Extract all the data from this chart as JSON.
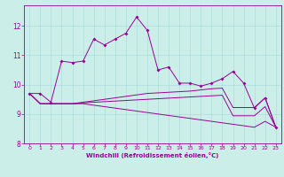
{
  "background_color": "#cceee8",
  "line_color": "#990099",
  "grid_color": "#aadddd",
  "xlabel": "Windchill (Refroidissement éolien,°C)",
  "xlabel_color": "#990099",
  "xlim": [
    -0.5,
    23.5
  ],
  "ylim": [
    8.0,
    12.7
  ],
  "yticks": [
    8,
    9,
    10,
    11,
    12
  ],
  "xticks": [
    0,
    1,
    2,
    3,
    4,
    5,
    6,
    7,
    8,
    9,
    10,
    11,
    12,
    13,
    14,
    15,
    16,
    17,
    18,
    19,
    20,
    21,
    22,
    23
  ],
  "series1_x": [
    0,
    1,
    2,
    3,
    4,
    5,
    6,
    7,
    8,
    9,
    10,
    11,
    12,
    13,
    14,
    15,
    16,
    17,
    18,
    19,
    20,
    21,
    22,
    23
  ],
  "series1_y": [
    9.7,
    9.7,
    9.4,
    10.8,
    10.75,
    10.8,
    11.55,
    11.35,
    11.55,
    11.75,
    12.3,
    11.85,
    10.5,
    10.6,
    10.05,
    10.05,
    9.95,
    10.05,
    10.2,
    10.45,
    10.05,
    9.2,
    9.55,
    8.55
  ],
  "series2_x": [
    0,
    1,
    2,
    3,
    4,
    5,
    6,
    7,
    8,
    9,
    10,
    11,
    12,
    13,
    14,
    15,
    16,
    17,
    18,
    19,
    20,
    21,
    22,
    23
  ],
  "series2_y": [
    9.7,
    9.35,
    9.35,
    9.35,
    9.35,
    9.4,
    9.45,
    9.5,
    9.55,
    9.6,
    9.65,
    9.7,
    9.72,
    9.74,
    9.76,
    9.78,
    9.82,
    9.86,
    9.88,
    9.22,
    9.22,
    9.22,
    9.55,
    8.55
  ],
  "series3_x": [
    0,
    1,
    2,
    3,
    4,
    5,
    6,
    7,
    8,
    9,
    10,
    11,
    12,
    13,
    14,
    15,
    16,
    17,
    18,
    19,
    20,
    21,
    22,
    23
  ],
  "series3_y": [
    9.7,
    9.35,
    9.35,
    9.35,
    9.35,
    9.35,
    9.3,
    9.25,
    9.2,
    9.15,
    9.1,
    9.05,
    9.0,
    8.95,
    8.9,
    8.85,
    8.8,
    8.75,
    8.7,
    8.65,
    8.6,
    8.55,
    8.75,
    8.55
  ],
  "series4_x": [
    0,
    1,
    2,
    3,
    4,
    5,
    6,
    7,
    8,
    9,
    10,
    11,
    12,
    13,
    14,
    15,
    16,
    17,
    18,
    19,
    20,
    21,
    22,
    23
  ],
  "series4_y": [
    9.7,
    9.35,
    9.35,
    9.35,
    9.35,
    9.38,
    9.4,
    9.42,
    9.44,
    9.46,
    9.48,
    9.5,
    9.52,
    9.54,
    9.56,
    9.58,
    9.6,
    9.62,
    9.64,
    8.94,
    8.94,
    8.94,
    9.25,
    8.55
  ]
}
